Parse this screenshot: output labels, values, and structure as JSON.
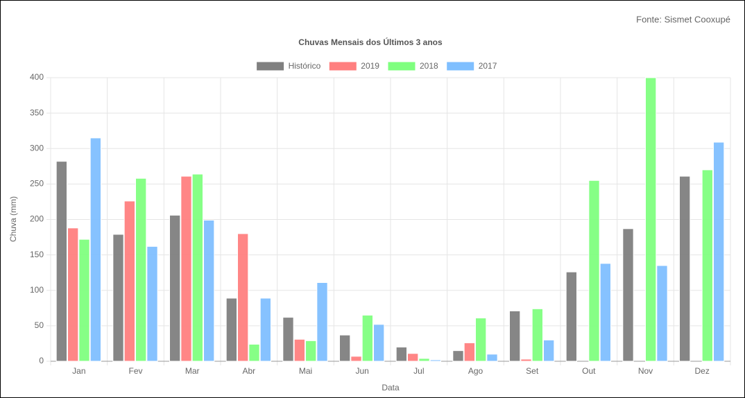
{
  "chart_data": {
    "type": "bar",
    "title": "Chuvas Mensais dos Últimos 3 anos",
    "source": "Fonte: Sismet Cooxupé",
    "x_label": "Data",
    "y_label": "Chuva (mm)",
    "categories": [
      "Jan",
      "Fev",
      "Mar",
      "Abr",
      "Mai",
      "Jun",
      "Jul",
      "Ago",
      "Set",
      "Out",
      "Nov",
      "Dez"
    ],
    "series": [
      {
        "name": "Histórico",
        "color": "#808080",
        "values": [
          282,
          179,
          206,
          89,
          62,
          37,
          20,
          15,
          71,
          126,
          187,
          261
        ]
      },
      {
        "name": "2019",
        "color": "#ff7f7f",
        "values": [
          188,
          226,
          261,
          180,
          31,
          7,
          11,
          26,
          3,
          null,
          null,
          null
        ]
      },
      {
        "name": "2018",
        "color": "#7fff7f",
        "values": [
          172,
          258,
          264,
          24,
          29,
          65,
          4,
          61,
          74,
          255,
          400,
          270
        ]
      },
      {
        "name": "2017",
        "color": "#7fbfff",
        "values": [
          315,
          162,
          199,
          89,
          111,
          52,
          2,
          10,
          30,
          138,
          135,
          309
        ]
      }
    ],
    "ylim": [
      0,
      400
    ],
    "yticks": [
      0,
      50,
      100,
      150,
      200,
      250,
      300,
      350,
      400
    ],
    "grid": true
  }
}
